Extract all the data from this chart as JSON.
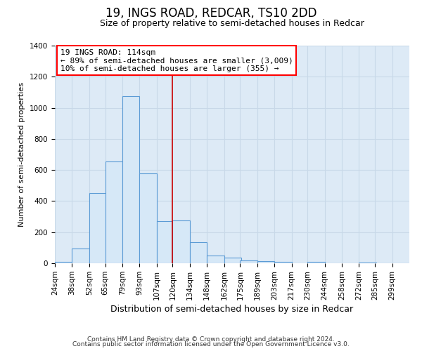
{
  "title": "19, INGS ROAD, REDCAR, TS10 2DD",
  "subtitle": "Size of property relative to semi-detached houses in Redcar",
  "xlabel": "Distribution of semi-detached houses by size in Redcar",
  "ylabel": "Number of semi-detached properties",
  "footer1": "Contains HM Land Registry data © Crown copyright and database right 2024.",
  "footer2": "Contains public sector information licensed under the Open Government Licence v3.0.",
  "annotation_title": "19 INGS ROAD: 114sqm",
  "annotation_line1": "← 89% of semi-detached houses are smaller (3,009)",
  "annotation_line2": "10% of semi-detached houses are larger (355) →",
  "vline_x": 120,
  "bins": [
    24,
    38,
    52,
    65,
    79,
    93,
    107,
    120,
    134,
    148,
    162,
    175,
    189,
    203,
    217,
    230,
    244,
    258,
    272,
    285,
    299
  ],
  "counts": [
    10,
    95,
    450,
    655,
    1075,
    580,
    270,
    275,
    135,
    50,
    35,
    20,
    15,
    10,
    0,
    10,
    0,
    0,
    5,
    0,
    0
  ],
  "bar_color": "#d6e8f7",
  "bar_edge_color": "#5b9bd5",
  "vline_color": "#cc0000",
  "grid_color": "#c8d8e8",
  "background_color": "#ddeaf6",
  "ylim": [
    0,
    1400
  ],
  "yticks": [
    0,
    200,
    400,
    600,
    800,
    1000,
    1200,
    1400
  ],
  "title_fontsize": 12,
  "subtitle_fontsize": 9,
  "ylabel_fontsize": 8,
  "xlabel_fontsize": 9,
  "tick_fontsize": 7.5,
  "footer_fontsize": 6.5,
  "ann_fontsize": 8
}
